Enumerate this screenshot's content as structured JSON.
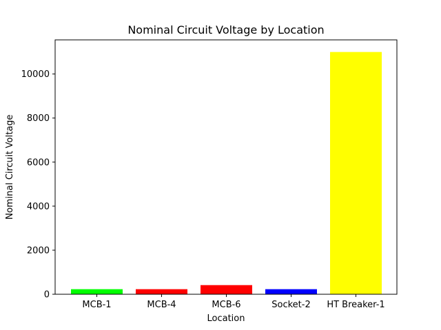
{
  "chart_data": {
    "type": "bar",
    "title": "Nominal Circuit Voltage by Location",
    "xlabel": "Location",
    "ylabel": "Nominal Circuit Voltage",
    "categories": [
      "MCB-1",
      "MCB-4",
      "MCB-6",
      "Socket-2",
      "HT Breaker-1"
    ],
    "values": [
      230,
      230,
      415,
      230,
      11000
    ],
    "colors": [
      "#00ff00",
      "#ff0000",
      "#ff0000",
      "#0000ff",
      "#ffff00"
    ],
    "yticks": [
      0,
      2000,
      4000,
      6000,
      8000,
      10000
    ],
    "ylim": [
      0,
      11550
    ],
    "grid": false,
    "legend": "none"
  }
}
